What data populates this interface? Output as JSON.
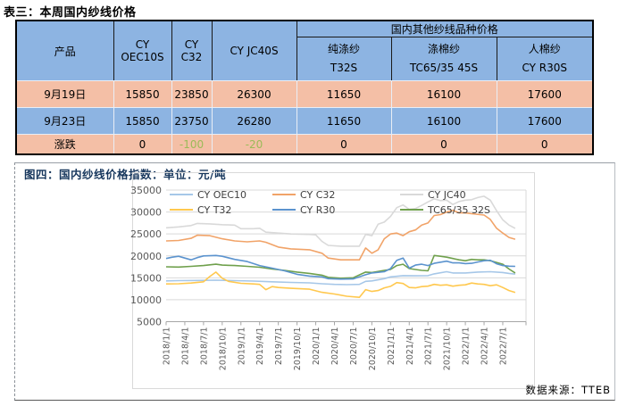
{
  "accent_colors": {
    "header_blue": "#8DB4E2",
    "row_pink": "#F4BFA6",
    "negative_green": "#9BBB59",
    "figure_title_navy": "#17375D"
  },
  "table": {
    "title": "表三：本周国内纱线价格",
    "header": {
      "product": "产品",
      "cy_oec10s": [
        "CY",
        "OEC10S"
      ],
      "cy_c32": [
        "CY",
        "C32"
      ],
      "cy_jc40s": "CY JC40S",
      "group": "国内其他纱线品种价格",
      "sub1": [
        "纯涤纱",
        "T32S"
      ],
      "sub2": [
        "涤棉纱",
        "TC65/35 45S"
      ],
      "sub3": [
        "人棉纱",
        "CY R30S"
      ]
    },
    "rows": [
      {
        "label": "9月19日",
        "values": [
          "15850",
          "23850",
          "26300",
          "11650",
          "16100",
          "17600"
        ]
      },
      {
        "label": "9月23日",
        "values": [
          "15850",
          "23750",
          "26280",
          "11650",
          "16100",
          "17600"
        ]
      },
      {
        "label": "涨跌",
        "values": [
          "0",
          "-100",
          "-20",
          "0",
          "0",
          "0"
        ]
      }
    ]
  },
  "figure": {
    "title": "图四：国内纱线价格指数：单位：元/吨",
    "source": "数据来源：TTEB"
  },
  "chart_data": {
    "type": "line",
    "title": "国内纱线价格指数",
    "ylabel": "元/吨",
    "xlabel": "",
    "ylim": [
      5000,
      35000
    ],
    "yticks": [
      35000,
      30000,
      25000,
      20000,
      15000,
      10000,
      5000
    ],
    "x_tick_labels": [
      "2018/1/1",
      "2018/4/1",
      "2018/7/1",
      "2018/10/1",
      "2019/1/1",
      "2019/4/1",
      "2019/7/1",
      "2019/10/1",
      "2020/1/1",
      "2020/4/1",
      "2020/7/1",
      "2020/10/1",
      "2021/1/1",
      "2021/4/1",
      "2021/7/1",
      "2021/10/1",
      "2022/1/1",
      "2022/4/1",
      "2022/7/1"
    ],
    "grid": true,
    "legend_position": "top-inside",
    "series": [
      {
        "name": "CY OEC10",
        "color": "#A6C7E8",
        "points": [
          [
            "2018/1",
            14300
          ],
          [
            "2018/3",
            14350
          ],
          [
            "2018/6",
            14400
          ],
          [
            "2018/9",
            14450
          ],
          [
            "2018/12",
            14350
          ],
          [
            "2019/3",
            14250
          ],
          [
            "2019/6",
            14100
          ],
          [
            "2019/9",
            13950
          ],
          [
            "2019/12",
            13850
          ],
          [
            "2020/2",
            13650
          ],
          [
            "2020/4",
            13500
          ],
          [
            "2020/6",
            13450
          ],
          [
            "2020/8",
            13500
          ],
          [
            "2020/9",
            14200
          ],
          [
            "2020/10",
            14300
          ],
          [
            "2020/12",
            14800
          ],
          [
            "2021/1",
            15200
          ],
          [
            "2021/3",
            15500
          ],
          [
            "2021/5",
            15450
          ],
          [
            "2021/7",
            15500
          ],
          [
            "2021/8",
            15900
          ],
          [
            "2021/10",
            16400
          ],
          [
            "2021/11",
            16100
          ],
          [
            "2022/1",
            16100
          ],
          [
            "2022/3",
            16300
          ],
          [
            "2022/5",
            16400
          ],
          [
            "2022/7",
            16200
          ],
          [
            "2022/8",
            16000
          ],
          [
            "2022/9",
            15850
          ]
        ]
      },
      {
        "name": "CY C32",
        "color": "#F1A368",
        "points": [
          [
            "2018/1",
            23400
          ],
          [
            "2018/3",
            23500
          ],
          [
            "2018/5",
            24000
          ],
          [
            "2018/6",
            24700
          ],
          [
            "2018/8",
            24600
          ],
          [
            "2018/10",
            23900
          ],
          [
            "2018/12",
            23400
          ],
          [
            "2019/2",
            23200
          ],
          [
            "2019/4",
            23400
          ],
          [
            "2019/5",
            23100
          ],
          [
            "2019/7",
            22000
          ],
          [
            "2019/9",
            21600
          ],
          [
            "2019/12",
            21400
          ],
          [
            "2020/2",
            20600
          ],
          [
            "2020/3",
            19500
          ],
          [
            "2020/5",
            19100
          ],
          [
            "2020/8",
            19100
          ],
          [
            "2020/9",
            21800
          ],
          [
            "2020/10",
            20600
          ],
          [
            "2020/11",
            21400
          ],
          [
            "2020/12",
            23900
          ],
          [
            "2021/1",
            25000
          ],
          [
            "2021/2",
            25200
          ],
          [
            "2021/3",
            24600
          ],
          [
            "2021/4",
            25500
          ],
          [
            "2021/5",
            25900
          ],
          [
            "2021/6",
            27000
          ],
          [
            "2021/7",
            27500
          ],
          [
            "2021/8",
            29200
          ],
          [
            "2021/9",
            29400
          ],
          [
            "2021/10",
            30000
          ],
          [
            "2021/11",
            30400
          ],
          [
            "2021/12",
            29800
          ],
          [
            "2022/1",
            29800
          ],
          [
            "2022/2",
            29600
          ],
          [
            "2022/4",
            29300
          ],
          [
            "2022/5",
            28300
          ],
          [
            "2022/6",
            26300
          ],
          [
            "2022/7",
            25200
          ],
          [
            "2022/8",
            24200
          ],
          [
            "2022/9",
            23800
          ]
        ]
      },
      {
        "name": "CY JC40",
        "color": "#D9D9D9",
        "points": [
          [
            "2018/1",
            26400
          ],
          [
            "2018/3",
            26600
          ],
          [
            "2018/5",
            26900
          ],
          [
            "2018/6",
            27400
          ],
          [
            "2018/8",
            27300
          ],
          [
            "2018/10",
            27100
          ],
          [
            "2018/12",
            27000
          ],
          [
            "2019/1",
            26200
          ],
          [
            "2019/3",
            26200
          ],
          [
            "2019/4",
            26300
          ],
          [
            "2019/5",
            25400
          ],
          [
            "2019/7",
            25200
          ],
          [
            "2019/9",
            25000
          ],
          [
            "2019/12",
            24900
          ],
          [
            "2020/1",
            24800
          ],
          [
            "2020/2",
            23300
          ],
          [
            "2020/3",
            22400
          ],
          [
            "2020/5",
            22200
          ],
          [
            "2020/8",
            22200
          ],
          [
            "2020/9",
            24900
          ],
          [
            "2020/10",
            24600
          ],
          [
            "2020/11",
            27200
          ],
          [
            "2020/12",
            27700
          ],
          [
            "2021/1",
            29000
          ],
          [
            "2021/2",
            31000
          ],
          [
            "2021/3",
            31600
          ],
          [
            "2021/4",
            30600
          ],
          [
            "2021/5",
            30800
          ],
          [
            "2021/6",
            31500
          ],
          [
            "2021/7",
            32300
          ],
          [
            "2021/8",
            33000
          ],
          [
            "2021/9",
            32600
          ],
          [
            "2021/10",
            32700
          ],
          [
            "2021/11",
            31700
          ],
          [
            "2021/12",
            32400
          ],
          [
            "2022/1",
            32700
          ],
          [
            "2022/2",
            32800
          ],
          [
            "2022/3",
            33300
          ],
          [
            "2022/4",
            33600
          ],
          [
            "2022/5",
            32700
          ],
          [
            "2022/6",
            30300
          ],
          [
            "2022/7",
            28200
          ],
          [
            "2022/8",
            27000
          ],
          [
            "2022/9",
            26280
          ]
        ]
      },
      {
        "name": "CY T32",
        "color": "#FFC84E",
        "points": [
          [
            "2018/1",
            13600
          ],
          [
            "2018/3",
            13650
          ],
          [
            "2018/5",
            13800
          ],
          [
            "2018/7",
            14100
          ],
          [
            "2018/8",
            15300
          ],
          [
            "2018/9",
            16300
          ],
          [
            "2018/10",
            14900
          ],
          [
            "2018/11",
            14200
          ],
          [
            "2019/1",
            13750
          ],
          [
            "2019/3",
            13600
          ],
          [
            "2019/4",
            13500
          ],
          [
            "2019/5",
            12300
          ],
          [
            "2019/6",
            13000
          ],
          [
            "2019/7",
            12800
          ],
          [
            "2019/9",
            12600
          ],
          [
            "2019/12",
            12400
          ],
          [
            "2020/2",
            11700
          ],
          [
            "2020/4",
            11300
          ],
          [
            "2020/6",
            10800
          ],
          [
            "2020/8",
            10550
          ],
          [
            "2020/9",
            12300
          ],
          [
            "2020/10",
            11900
          ],
          [
            "2020/11",
            12100
          ],
          [
            "2020/12",
            12700
          ],
          [
            "2021/1",
            13050
          ],
          [
            "2021/2",
            13900
          ],
          [
            "2021/3",
            13700
          ],
          [
            "2021/4",
            12800
          ],
          [
            "2021/5",
            12700
          ],
          [
            "2021/6",
            13000
          ],
          [
            "2021/7",
            13100
          ],
          [
            "2021/8",
            13500
          ],
          [
            "2021/9",
            13300
          ],
          [
            "2021/10",
            13400
          ],
          [
            "2021/11",
            13100
          ],
          [
            "2021/12",
            13300
          ],
          [
            "2022/1",
            13400
          ],
          [
            "2022/2",
            13800
          ],
          [
            "2022/3",
            13600
          ],
          [
            "2022/4",
            13500
          ],
          [
            "2022/5",
            13200
          ],
          [
            "2022/6",
            13400
          ],
          [
            "2022/7",
            12800
          ],
          [
            "2022/8",
            12100
          ],
          [
            "2022/9",
            11650
          ]
        ]
      },
      {
        "name": "CY R30",
        "color": "#5B93CE",
        "points": [
          [
            "2018/1",
            19400
          ],
          [
            "2018/2",
            19700
          ],
          [
            "2018/3",
            19900
          ],
          [
            "2018/4",
            19500
          ],
          [
            "2018/5",
            19100
          ],
          [
            "2018/6",
            19600
          ],
          [
            "2018/7",
            20000
          ],
          [
            "2018/9",
            20100
          ],
          [
            "2018/10",
            19900
          ],
          [
            "2018/12",
            19200
          ],
          [
            "2019/2",
            18700
          ],
          [
            "2019/4",
            17800
          ],
          [
            "2019/6",
            17200
          ],
          [
            "2019/8",
            16600
          ],
          [
            "2019/10",
            15800
          ],
          [
            "2019/12",
            15400
          ],
          [
            "2020/2",
            15200
          ],
          [
            "2020/3",
            14800
          ],
          [
            "2020/5",
            14700
          ],
          [
            "2020/7",
            14750
          ],
          [
            "2020/9",
            15700
          ],
          [
            "2020/10",
            16100
          ],
          [
            "2020/12",
            16400
          ],
          [
            "2021/1",
            17100
          ],
          [
            "2021/2",
            19000
          ],
          [
            "2021/3",
            19500
          ],
          [
            "2021/4",
            17200
          ],
          [
            "2021/5",
            17900
          ],
          [
            "2021/6",
            18100
          ],
          [
            "2021/7",
            17800
          ],
          [
            "2021/8",
            18300
          ],
          [
            "2021/10",
            18800
          ],
          [
            "2021/11",
            18400
          ],
          [
            "2021/12",
            18400
          ],
          [
            "2022/1",
            18250
          ],
          [
            "2022/2",
            18300
          ],
          [
            "2022/3",
            18600
          ],
          [
            "2022/4",
            18900
          ],
          [
            "2022/5",
            19000
          ],
          [
            "2022/6",
            18200
          ],
          [
            "2022/7",
            17800
          ],
          [
            "2022/8",
            17650
          ],
          [
            "2022/9",
            17600
          ]
        ]
      },
      {
        "name": "TC65/35 32S",
        "color": "#6FA04C",
        "points": [
          [
            "2018/1",
            17500
          ],
          [
            "2018/3",
            17450
          ],
          [
            "2018/5",
            17600
          ],
          [
            "2018/7",
            17800
          ],
          [
            "2018/9",
            18100
          ],
          [
            "2018/10",
            17900
          ],
          [
            "2018/12",
            17800
          ],
          [
            "2019/2",
            17600
          ],
          [
            "2019/4",
            17400
          ],
          [
            "2019/6",
            17000
          ],
          [
            "2019/8",
            16700
          ],
          [
            "2019/10",
            16300
          ],
          [
            "2019/12",
            16000
          ],
          [
            "2020/2",
            15600
          ],
          [
            "2020/3",
            15100
          ],
          [
            "2020/5",
            14900
          ],
          [
            "2020/7",
            15000
          ],
          [
            "2020/9",
            16300
          ],
          [
            "2020/10",
            16200
          ],
          [
            "2020/12",
            16700
          ],
          [
            "2021/1",
            16900
          ],
          [
            "2021/2",
            17800
          ],
          [
            "2021/3",
            18100
          ],
          [
            "2021/4",
            17100
          ],
          [
            "2021/5",
            16900
          ],
          [
            "2021/6",
            16700
          ],
          [
            "2021/7",
            16600
          ],
          [
            "2021/8",
            20100
          ],
          [
            "2021/9",
            19900
          ],
          [
            "2021/10",
            19700
          ],
          [
            "2021/11",
            19400
          ],
          [
            "2021/12",
            19100
          ],
          [
            "2022/1",
            18900
          ],
          [
            "2022/2",
            19200
          ],
          [
            "2022/3",
            19100
          ],
          [
            "2022/4",
            19100
          ],
          [
            "2022/5",
            18900
          ],
          [
            "2022/6",
            18500
          ],
          [
            "2022/7",
            18100
          ],
          [
            "2022/8",
            17000
          ],
          [
            "2022/9",
            16100
          ]
        ]
      }
    ]
  }
}
